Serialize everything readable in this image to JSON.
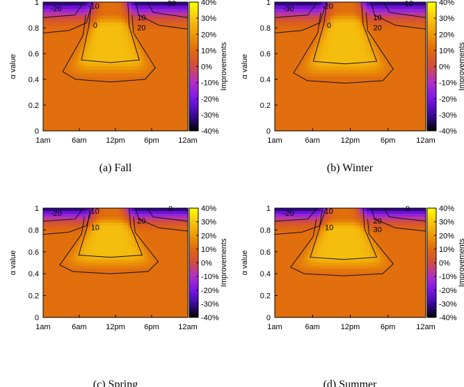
{
  "chart_data": [
    {
      "type": "heatmap",
      "caption": "(a) Fall",
      "ylabel": "α value",
      "colorbar_label": "Improvements",
      "x_ticks": [
        "1am",
        "6am",
        "12pm",
        "6pm",
        "12am"
      ],
      "y_ticks": [
        "0",
        "0.2",
        "0.4",
        "0.6",
        "0.8",
        "1"
      ],
      "colorbar_ticks": [
        "40%",
        "30%",
        "20%",
        "10%",
        "0%",
        "-10%",
        "-20%",
        "-30%",
        "-40%"
      ],
      "xlim": [
        1,
        24
      ],
      "ylim": [
        0,
        1
      ],
      "zlim": [
        -40,
        40
      ],
      "contour_labels": [
        "-20",
        "-10",
        "-30",
        "0",
        "10",
        "20"
      ],
      "peak_improvement": 30
    },
    {
      "type": "heatmap",
      "caption": "(b) Winter",
      "ylabel": "α value",
      "colorbar_label": "Improvements",
      "x_ticks": [
        "1am",
        "6am",
        "12pm",
        "6pm",
        "12am"
      ],
      "y_ticks": [
        "0",
        "0.2",
        "0.4",
        "0.6",
        "0.8",
        "1"
      ],
      "colorbar_ticks": [
        "40%",
        "30%",
        "20%",
        "10%",
        "0%",
        "-10%",
        "-20%",
        "-30%",
        "-40%"
      ],
      "xlim": [
        1,
        24
      ],
      "ylim": [
        0,
        1
      ],
      "zlim": [
        -40,
        40
      ],
      "contour_labels": [
        "-30",
        "-20",
        "-10",
        "0",
        "10",
        "20"
      ],
      "peak_improvement": 28
    },
    {
      "type": "heatmap",
      "caption": "(c) Spring",
      "ylabel": "α value",
      "colorbar_label": "Improvements",
      "x_ticks": [
        "1am",
        "6am",
        "12pm",
        "6pm",
        "12am"
      ],
      "y_ticks": [
        "0",
        "0.2",
        "0.4",
        "0.6",
        "0.8",
        "1"
      ],
      "colorbar_ticks": [
        "40%",
        "30%",
        "20%",
        "10%",
        "0%",
        "-10%",
        "-20%",
        "-30%",
        "-40%"
      ],
      "xlim": [
        1,
        24
      ],
      "ylim": [
        0,
        1
      ],
      "zlim": [
        -40,
        40
      ],
      "contour_labels": [
        "-20",
        "-10",
        "0",
        "10",
        "20"
      ],
      "peak_improvement": 29
    },
    {
      "type": "heatmap",
      "caption": "(d) Summer",
      "ylabel": "α value",
      "colorbar_label": "Improvements",
      "x_ticks": [
        "1am",
        "6am",
        "12pm",
        "6pm",
        "12am"
      ],
      "y_ticks": [
        "0",
        "0.2",
        "0.4",
        "0.6",
        "0.8",
        "1"
      ],
      "colorbar_ticks": [
        "40%",
        "30%",
        "20%",
        "10%",
        "0%",
        "-10%",
        "-20%",
        "-30%",
        "-40%"
      ],
      "xlim": [
        1,
        24
      ],
      "ylim": [
        0,
        1
      ],
      "zlim": [
        -40,
        40
      ],
      "contour_labels": [
        "-20",
        "-10",
        "0",
        "10",
        "20",
        "30"
      ],
      "peak_improvement": 33
    }
  ],
  "colormap": {
    "name": "gnuplot-default",
    "colors": [
      "#000000",
      "#3b0a9c",
      "#7a16e6",
      "#b02fc8",
      "#d14c40",
      "#e06a0e",
      "#ed9a08",
      "#f7c60f",
      "#ffff00"
    ]
  }
}
